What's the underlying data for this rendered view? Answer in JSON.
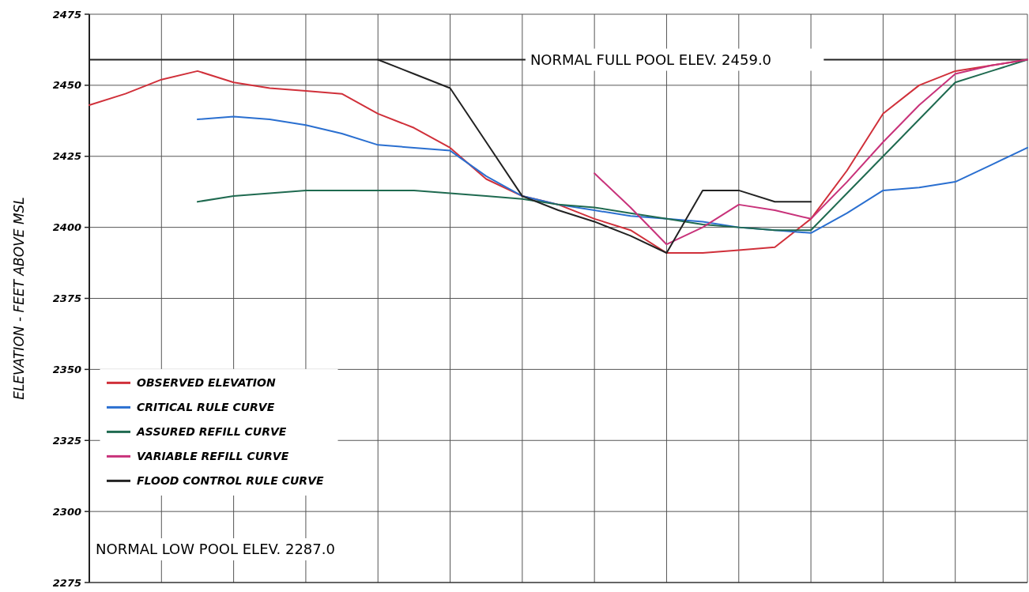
{
  "chart_data": {
    "type": "line",
    "ylabel": "ELEVATION - FEET ABOVE MSL",
    "categories": [
      null,
      null,
      null,
      null,
      null,
      null,
      null,
      null,
      null,
      null,
      null,
      null,
      null,
      null,
      null,
      null,
      null,
      null,
      null,
      null,
      null,
      null,
      null,
      null,
      null,
      null,
      null
    ],
    "series": [
      {
        "name": "OBSERVED ELEVATION",
        "color": "#d0303a",
        "values": [
          2443,
          2447,
          2452,
          2455,
          2451,
          2449,
          2448,
          2447,
          2440,
          2435,
          2428,
          2417,
          2411,
          2408,
          2403,
          2399,
          2391,
          2391,
          2392,
          2393,
          2403,
          2420,
          2440,
          2450,
          2455,
          2457,
          2459
        ]
      },
      {
        "name": "CRITICAL RULE CURVE",
        "color": "#2a6fd0",
        "values": [
          null,
          null,
          null,
          2438,
          2439,
          2438,
          2436,
          2433,
          2429,
          2428,
          2427,
          2418,
          2411,
          2408,
          2406,
          2404,
          2403,
          2402,
          2400,
          2399,
          2398,
          2405,
          2413,
          2414,
          2416,
          2422,
          2428
        ]
      },
      {
        "name": "ASSURED REFILL CURVE",
        "color": "#1f6a50",
        "values": [
          null,
          null,
          null,
          2409,
          2411,
          2412,
          2413,
          2413,
          2413,
          2413,
          2412,
          2411,
          2410,
          2408,
          2407,
          2405,
          2403,
          2401,
          2400,
          2399,
          2399,
          2412,
          2425,
          2438,
          2451,
          2455,
          2459
        ]
      },
      {
        "name": "VARIABLE REFILL CURVE",
        "color": "#c8327a",
        "values": [
          null,
          null,
          null,
          null,
          null,
          null,
          null,
          null,
          null,
          null,
          null,
          null,
          null,
          null,
          2419,
          2407,
          2394,
          2400,
          2408,
          2406,
          2403,
          2416,
          2430,
          2443,
          2454,
          2457,
          2459
        ]
      },
      {
        "name": "FLOOD CONTROL RULE CURVE",
        "color": "#222222",
        "values": [
          null,
          null,
          null,
          null,
          null,
          null,
          null,
          null,
          2459,
          2454,
          2449,
          2430,
          2411,
          2406,
          2402,
          2397,
          2391,
          2413,
          2413,
          2409,
          2409,
          null,
          null,
          null,
          null,
          null,
          null
        ]
      }
    ],
    "ylim": [
      2275,
      2475
    ],
    "yticks": [
      2275,
      2300,
      2325,
      2350,
      2375,
      2400,
      2425,
      2450,
      2475
    ],
    "tick_labels": "y",
    "grid": true,
    "legend": "bottom left",
    "marker": "none",
    "line_style": "solid",
    "ref_lines": [
      {
        "axis": "y",
        "value": 2459,
        "label": "NORMAL FULL POOL ELEV. 2459.0",
        "color": "#222222"
      }
    ],
    "annotations": [
      "NORMAL LOW POOL ELEV. 2287.0"
    ]
  }
}
